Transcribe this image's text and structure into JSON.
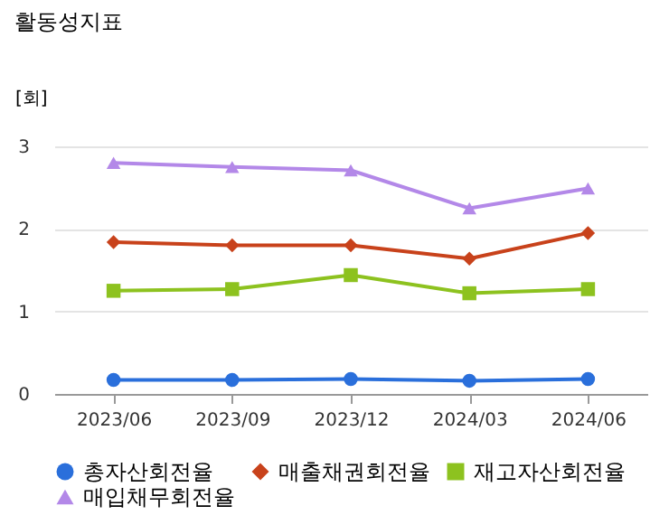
{
  "chart_data": {
    "type": "line",
    "title": "활동성지표",
    "ylabel": "[회]",
    "categories": [
      "2023/06",
      "2023/09",
      "2023/12",
      "2024/03",
      "2024/06"
    ],
    "series": [
      {
        "name": "총자산회전율",
        "color": "#2a6fdb",
        "marker": "circle",
        "values": [
          0.17,
          0.17,
          0.18,
          0.16,
          0.18
        ]
      },
      {
        "name": "매출채권회전율",
        "color": "#c8421b",
        "marker": "diamond",
        "values": [
          1.84,
          1.8,
          1.8,
          1.64,
          1.95
        ]
      },
      {
        "name": "재고자산회전율",
        "color": "#8dc21f",
        "marker": "square",
        "values": [
          1.25,
          1.27,
          1.44,
          1.22,
          1.27
        ]
      },
      {
        "name": "매입채무회전율",
        "color": "#b388e8",
        "marker": "triangle",
        "values": [
          2.8,
          2.75,
          2.71,
          2.25,
          2.49
        ]
      }
    ],
    "ylim": [
      0,
      3
    ],
    "yticks": [
      0,
      1,
      2,
      3
    ],
    "grid": "y",
    "legend": "bottom"
  }
}
